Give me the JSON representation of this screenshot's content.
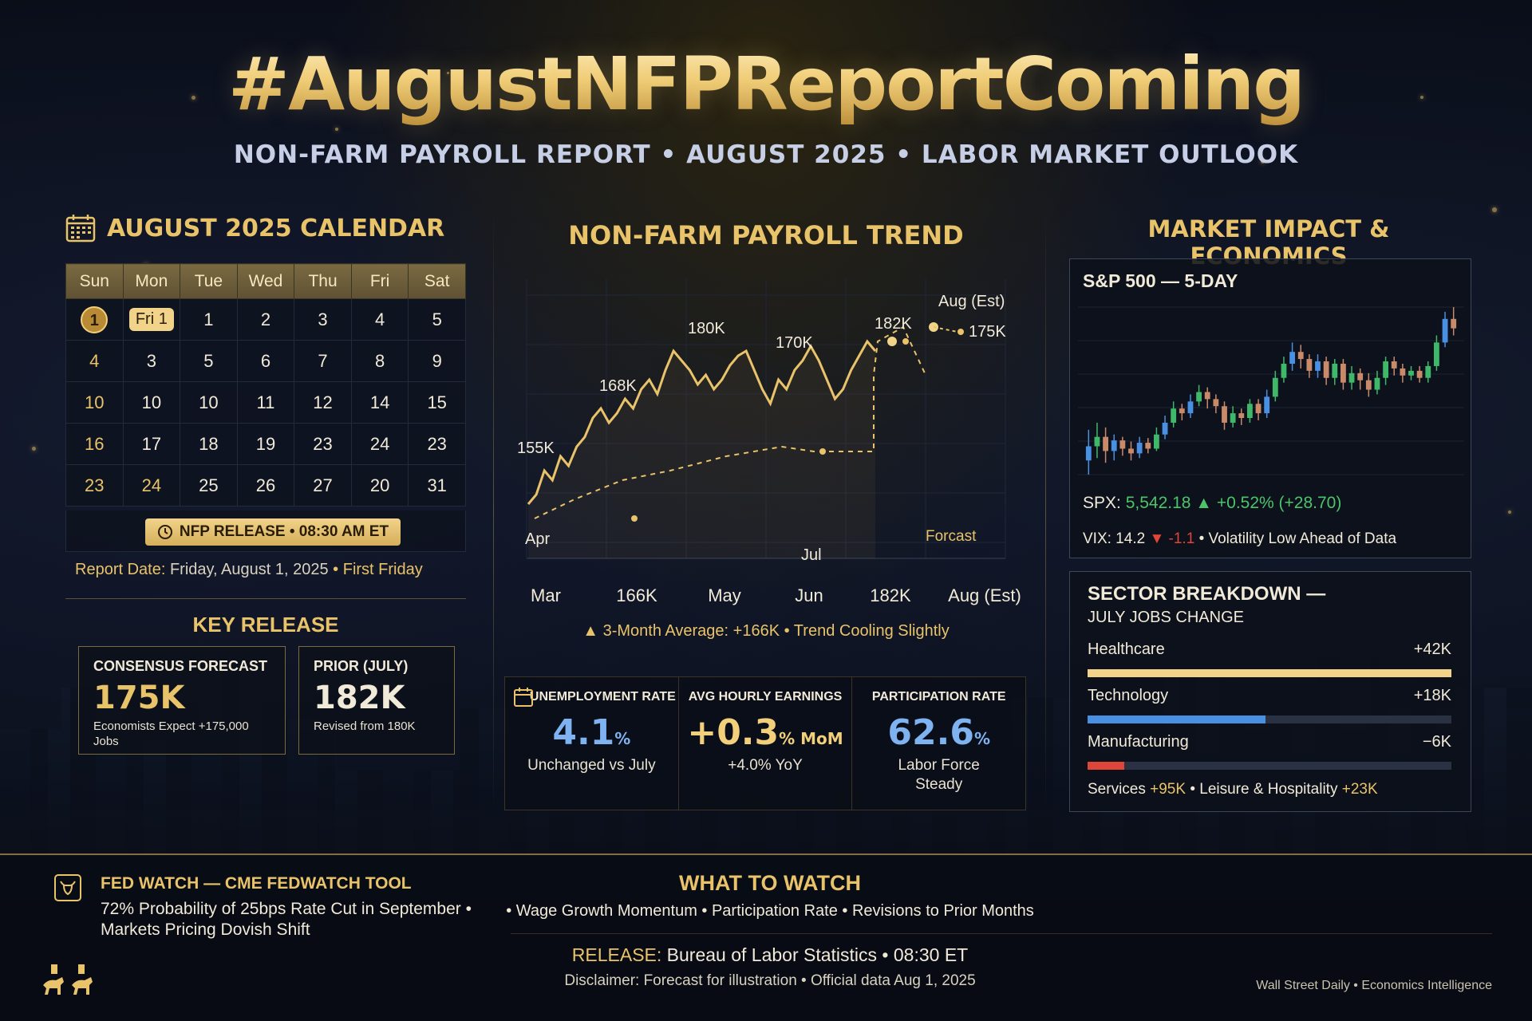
{
  "header": {
    "title": "#AugustNFPReportComing",
    "subtitle": "NON-FARM PAYROLL REPORT • AUGUST 2025 • LABOR MARKET OUTLOOK"
  },
  "calendar": {
    "title": "AUGUST 2025 CALENDAR",
    "weekdays": [
      "Sun",
      "Mon",
      "Tue",
      "Wed",
      "Thu",
      "Fri",
      "Sat"
    ],
    "rows": [
      [
        "1",
        "Fri 1",
        "1",
        "2",
        "3",
        "4",
        "5"
      ],
      [
        "4",
        "3",
        "5",
        "6",
        "7",
        "8",
        "9"
      ],
      [
        "10",
        "10",
        "10",
        "11",
        "12",
        "14",
        "15"
      ],
      [
        "16",
        "17",
        "18",
        "19",
        "23",
        "24",
        "23"
      ],
      [
        "23",
        "24",
        "25",
        "26",
        "27",
        "20",
        "31"
      ]
    ],
    "release_badge": "NFP RELEASE • 08:30 AM ET",
    "report_label": "Report Date:",
    "report_value": "Friday, August 1, 2025",
    "report_suffix": "• First Friday"
  },
  "key_release": {
    "title": "KEY RELEASE",
    "consensus_label": "CONSENSUS FORECAST",
    "consensus_value": "175K",
    "consensus_note": "Economists Expect +175,000 Jobs",
    "prior_label": "PRIOR (JULY)",
    "prior_value": "182K",
    "prior_note": "Revised from 180K"
  },
  "trend": {
    "title": "NON-FARM PAYROLL TREND",
    "average_note": "▲ 3-Month Average: +166K • Trend Cooling Slightly"
  },
  "chart_data": {
    "type": "line",
    "title": "NON-FARM PAYROLL TREND",
    "x_tick_labels": [
      "Mar",
      "166K",
      "May",
      "Jun",
      "182K",
      "Aug (Est)"
    ],
    "inner_labels": [
      "Apr",
      "Jul",
      "Forcast"
    ],
    "annotations": [
      {
        "label": "155K",
        "value": 155
      },
      {
        "label": "168K",
        "value": 168
      },
      {
        "label": "180K",
        "value": 180
      },
      {
        "label": "170K",
        "value": 170
      },
      {
        "label": "182K",
        "value": 182
      },
      {
        "label": "Aug (Est)",
        "value": 175
      },
      {
        "label": "175K",
        "value": 175
      }
    ],
    "series": [
      {
        "style": "solid",
        "values": [
          148,
          150,
          155,
          153,
          158,
          156,
          160,
          162,
          166,
          168,
          165,
          167,
          170,
          168,
          172,
          174,
          171,
          176,
          180,
          178,
          176,
          173,
          175,
          172,
          174,
          177,
          179,
          180,
          176,
          172,
          169,
          174,
          172,
          176,
          178,
          181,
          178,
          174,
          170,
          172,
          176,
          179,
          182,
          180
        ]
      },
      {
        "style": "dashed",
        "values": [
          145,
          149,
          153,
          155,
          158,
          160,
          159,
          159,
          159,
          175,
          182,
          185,
          175
        ]
      }
    ],
    "grid": true
  },
  "stats": [
    {
      "label": "UNEMPLOYMENT RATE",
      "value": "4.1",
      "unit": "%",
      "note": "Unchanged vs July",
      "color": "#7fb2f0"
    },
    {
      "label": "AVG HOURLY EARNINGS",
      "value": "+0.3",
      "unit": "% MoM",
      "note": "+4.0% YoY",
      "color": "#f2cf7a"
    },
    {
      "label": "PARTICIPATION RATE",
      "value": "62.6",
      "unit": "%",
      "note": "Labor Force Steady",
      "color": "#7fb2f0"
    }
  ],
  "market": {
    "title": "MARKET IMPACT & ECONOMICS",
    "spx_title": "S&P 500 — 5-DAY",
    "spx_label": "SPX:",
    "spx_value": "5,542.18 ▲ +0.52% (+28.70)",
    "vix_label": "VIX: 14.2",
    "vix_change": "▼ -1.1",
    "vix_note": "• Volatility Low Ahead of Data",
    "candles": [
      {
        "o": 5430,
        "c": 5442,
        "h": 5456,
        "l": 5418
      },
      {
        "o": 5442,
        "c": 5450,
        "h": 5462,
        "l": 5432
      },
      {
        "o": 5450,
        "c": 5438,
        "h": 5458,
        "l": 5428
      },
      {
        "o": 5438,
        "c": 5447,
        "h": 5452,
        "l": 5430
      },
      {
        "o": 5447,
        "c": 5440,
        "h": 5450,
        "l": 5434
      },
      {
        "o": 5440,
        "c": 5436,
        "h": 5446,
        "l": 5430
      },
      {
        "o": 5436,
        "c": 5445,
        "h": 5450,
        "l": 5432
      },
      {
        "o": 5445,
        "c": 5440,
        "h": 5449,
        "l": 5436
      },
      {
        "o": 5440,
        "c": 5452,
        "h": 5458,
        "l": 5438
      },
      {
        "o": 5452,
        "c": 5462,
        "h": 5468,
        "l": 5448
      },
      {
        "o": 5462,
        "c": 5474,
        "h": 5480,
        "l": 5458
      },
      {
        "o": 5474,
        "c": 5470,
        "h": 5478,
        "l": 5464
      },
      {
        "o": 5470,
        "c": 5480,
        "h": 5486,
        "l": 5466
      },
      {
        "o": 5480,
        "c": 5488,
        "h": 5494,
        "l": 5476
      },
      {
        "o": 5488,
        "c": 5482,
        "h": 5492,
        "l": 5474
      },
      {
        "o": 5482,
        "c": 5476,
        "h": 5486,
        "l": 5470
      },
      {
        "o": 5476,
        "c": 5462,
        "h": 5480,
        "l": 5456
      },
      {
        "o": 5462,
        "c": 5470,
        "h": 5476,
        "l": 5458
      },
      {
        "o": 5470,
        "c": 5466,
        "h": 5474,
        "l": 5460
      },
      {
        "o": 5466,
        "c": 5478,
        "h": 5482,
        "l": 5462
      },
      {
        "o": 5478,
        "c": 5470,
        "h": 5482,
        "l": 5464
      },
      {
        "o": 5470,
        "c": 5484,
        "h": 5490,
        "l": 5466
      },
      {
        "o": 5484,
        "c": 5500,
        "h": 5506,
        "l": 5480
      },
      {
        "o": 5500,
        "c": 5512,
        "h": 5518,
        "l": 5496
      },
      {
        "o": 5512,
        "c": 5522,
        "h": 5530,
        "l": 5506
      },
      {
        "o": 5522,
        "c": 5516,
        "h": 5528,
        "l": 5508
      },
      {
        "o": 5516,
        "c": 5506,
        "h": 5520,
        "l": 5500
      },
      {
        "o": 5506,
        "c": 5514,
        "h": 5520,
        "l": 5500
      },
      {
        "o": 5514,
        "c": 5500,
        "h": 5518,
        "l": 5494
      },
      {
        "o": 5500,
        "c": 5512,
        "h": 5516,
        "l": 5494
      },
      {
        "o": 5512,
        "c": 5496,
        "h": 5516,
        "l": 5490
      },
      {
        "o": 5496,
        "c": 5504,
        "h": 5510,
        "l": 5490
      },
      {
        "o": 5504,
        "c": 5498,
        "h": 5508,
        "l": 5490
      },
      {
        "o": 5498,
        "c": 5490,
        "h": 5504,
        "l": 5484
      },
      {
        "o": 5490,
        "c": 5500,
        "h": 5506,
        "l": 5486
      },
      {
        "o": 5500,
        "c": 5514,
        "h": 5518,
        "l": 5494
      },
      {
        "o": 5514,
        "c": 5508,
        "h": 5518,
        "l": 5502
      },
      {
        "o": 5508,
        "c": 5502,
        "h": 5512,
        "l": 5496
      },
      {
        "o": 5502,
        "c": 5506,
        "h": 5510,
        "l": 5498
      },
      {
        "o": 5506,
        "c": 5500,
        "h": 5510,
        "l": 5496
      },
      {
        "o": 5500,
        "c": 5510,
        "h": 5514,
        "l": 5496
      },
      {
        "o": 5510,
        "c": 5530,
        "h": 5536,
        "l": 5506
      },
      {
        "o": 5530,
        "c": 5550,
        "h": 5556,
        "l": 5526
      },
      {
        "o": 5550,
        "c": 5542,
        "h": 5560,
        "l": 5536
      }
    ],
    "candle_up_color": "#3fb86a",
    "candle_alt_up_color": "#4a90e2",
    "candle_down_color": "#c98a6a"
  },
  "sectors": {
    "title": "SECTOR BREAKDOWN —",
    "subtitle": "JULY JOBS CHANGE",
    "items": [
      {
        "name": "Healthcare",
        "value": "+42K",
        "share": 1.0,
        "color": "#f2d38a"
      },
      {
        "name": "Technology",
        "value": "+18K",
        "share": 0.49,
        "color": "#4a90e2"
      },
      {
        "name": "Manufacturing",
        "value": "−6K",
        "share": 0.1,
        "color": "#e0453a"
      }
    ],
    "foot_a": "Services",
    "foot_a_val": "+95K",
    "foot_b": "• Leisure & Hospitality",
    "foot_b_val": "+23K"
  },
  "fed": {
    "title": "FED WATCH — CME FEDWATCH TOOL",
    "text": "72% Probability of 25bps Rate Cut in September • Markets Pricing Dovish Shift"
  },
  "watch": {
    "title": "WHAT TO WATCH",
    "text": "• Wage Growth Momentum • Participation Rate • Revisions to Prior Months"
  },
  "release": {
    "label": "RELEASE:",
    "text": "Bureau of Labor Statistics • 08:30 ET",
    "disclaimer": "Disclaimer: Forecast for illustration • Official data Aug 1, 2025"
  },
  "brand": "Wall Street Daily • Economics Intelligence",
  "colors": {
    "accent": "#e9c36a",
    "positive": "#4cc46a",
    "negative": "#e0453a",
    "blue": "#7fb2f0"
  }
}
